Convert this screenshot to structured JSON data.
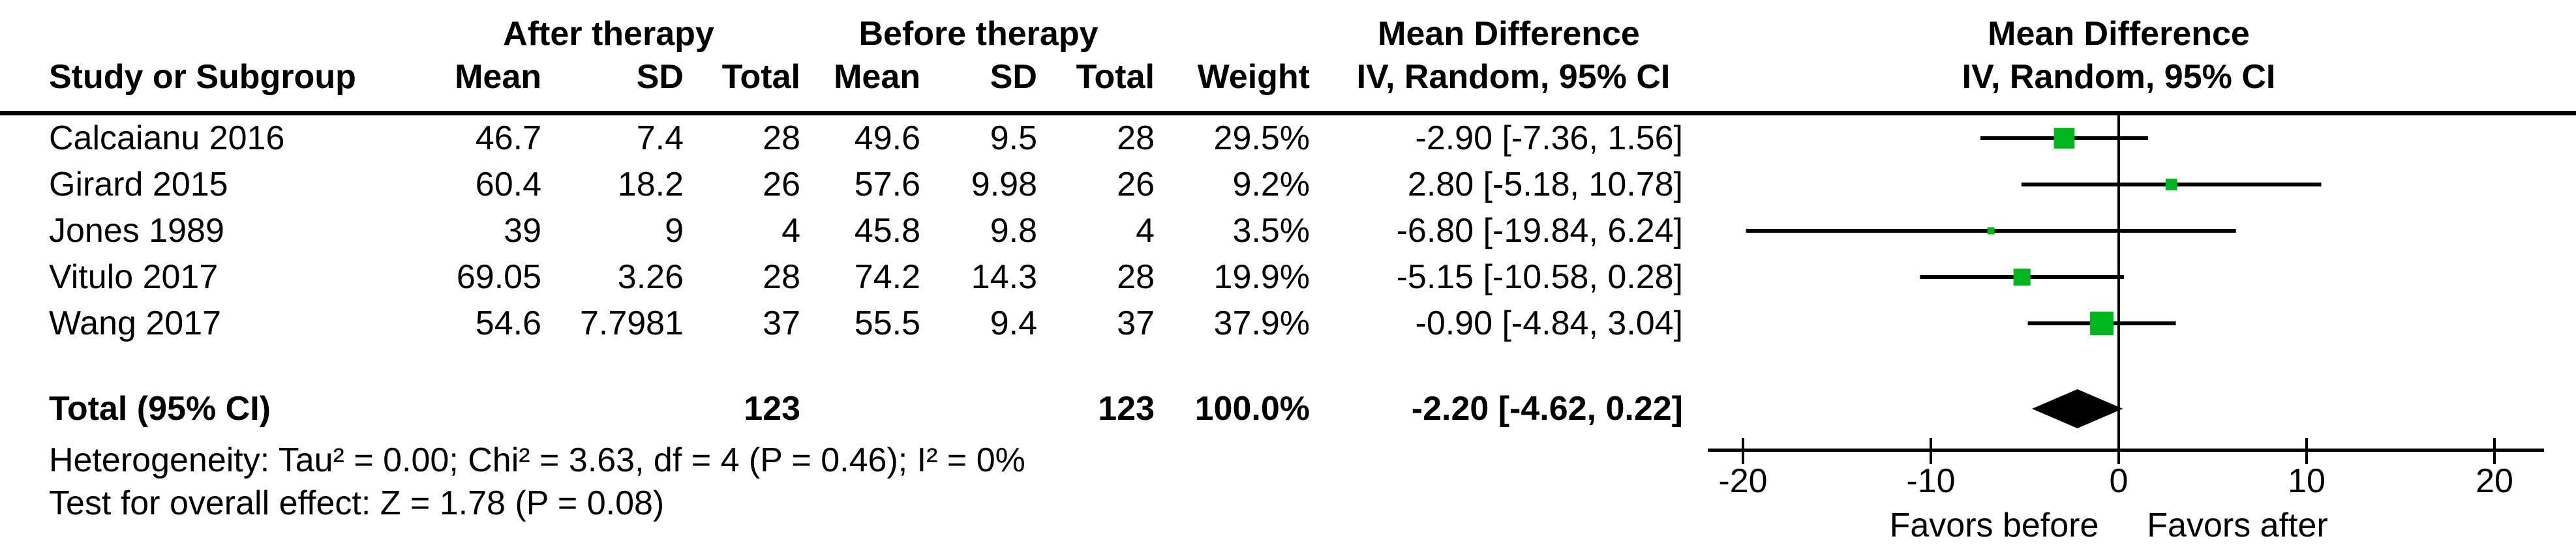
{
  "colors": {
    "marker_green": "#00b41e",
    "line_black": "#000000",
    "background": "#ffffff"
  },
  "table": {
    "group_headers": {
      "after": "After therapy",
      "before": "Before therapy",
      "md_text_col": "Mean Difference",
      "md_plot_col": "Mean Difference"
    },
    "col_headers": {
      "study": "Study or Subgroup",
      "mean": "Mean",
      "sd": "SD",
      "total": "Total",
      "weight": "Weight",
      "ci": "IV, Random, 95% CI",
      "ci_plot": "IV, Random, 95% CI"
    },
    "studies": [
      {
        "name": "Calcaianu 2016",
        "after_mean": "46.7",
        "after_sd": "7.4",
        "after_total": "28",
        "before_mean": "49.6",
        "before_sd": "9.5",
        "before_total": "28",
        "weight": "29.5%",
        "ci_text": "-2.90 [-7.36, 1.56]"
      },
      {
        "name": "Girard 2015",
        "after_mean": "60.4",
        "after_sd": "18.2",
        "after_total": "26",
        "before_mean": "57.6",
        "before_sd": "9.98",
        "before_total": "26",
        "weight": "9.2%",
        "ci_text": "2.80 [-5.18, 10.78]"
      },
      {
        "name": "Jones 1989",
        "after_mean": "39",
        "after_sd": "9",
        "after_total": "4",
        "before_mean": "45.8",
        "before_sd": "9.8",
        "before_total": "4",
        "weight": "3.5%",
        "ci_text": "-6.80 [-19.84, 6.24]"
      },
      {
        "name": "Vitulo 2017",
        "after_mean": "69.05",
        "after_sd": "3.26",
        "after_total": "28",
        "before_mean": "74.2",
        "before_sd": "14.3",
        "before_total": "28",
        "weight": "19.9%",
        "ci_text": "-5.15 [-10.58, 0.28]"
      },
      {
        "name": "Wang 2017",
        "after_mean": "54.6",
        "after_sd": "7.7981",
        "after_total": "37",
        "before_mean": "55.5",
        "before_sd": "9.4",
        "before_total": "37",
        "weight": "37.9%",
        "ci_text": "-0.90 [-4.84, 3.04]"
      }
    ],
    "total": {
      "label": "Total (95% CI)",
      "after_total": "123",
      "before_total": "123",
      "weight": "100.0%",
      "ci_text": "-2.20 [-4.62, 0.22]"
    },
    "heterogeneity": "Heterogeneity: Tau² = 0.00; Chi² = 3.63, df = 4 (P = 0.46); I² = 0%",
    "overall_effect": "Test for overall effect: Z = 1.78 (P = 0.08)"
  },
  "axis": {
    "ticks": [
      "-20",
      "-10",
      "0",
      "10",
      "20"
    ],
    "favors_left": "Favors before",
    "favors_right": "Favors after"
  },
  "chart_data": {
    "type": "forest",
    "title": "Mean Difference — IV, Random, 95% CI",
    "x_range": [
      -20,
      20
    ],
    "x_ticks": [
      -20,
      -10,
      0,
      10,
      20
    ],
    "xlabel_left": "Favors before",
    "xlabel_right": "Favors after",
    "studies": [
      {
        "name": "Calcaianu 2016",
        "md": -2.9,
        "ci_low": -7.36,
        "ci_high": 1.56,
        "weight_pct": 29.5
      },
      {
        "name": "Girard 2015",
        "md": 2.8,
        "ci_low": -5.18,
        "ci_high": 10.78,
        "weight_pct": 9.2
      },
      {
        "name": "Jones 1989",
        "md": -6.8,
        "ci_low": -19.84,
        "ci_high": 6.24,
        "weight_pct": 3.5
      },
      {
        "name": "Vitulo 2017",
        "md": -5.15,
        "ci_low": -10.58,
        "ci_high": 0.28,
        "weight_pct": 19.9
      },
      {
        "name": "Wang 2017",
        "md": -0.9,
        "ci_low": -4.84,
        "ci_high": 3.04,
        "weight_pct": 37.9
      }
    ],
    "total": {
      "name": "Total (95% CI)",
      "md": -2.2,
      "ci_low": -4.62,
      "ci_high": 0.22,
      "weight_pct": 100.0
    },
    "heterogeneity": {
      "tau2": 0.0,
      "chi2": 3.63,
      "df": 4,
      "p": 0.46,
      "i2_pct": 0
    },
    "overall_effect": {
      "z": 1.78,
      "p": 0.08
    },
    "marker_color": "#00b41e",
    "summary_marker": "black-diamond"
  }
}
